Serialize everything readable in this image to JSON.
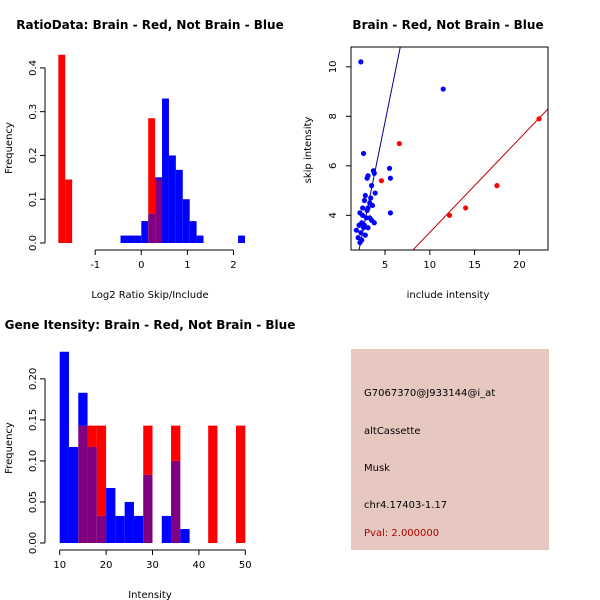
{
  "colors": {
    "red": "#ff0000",
    "blue": "#0000ff",
    "overlap": "#800080",
    "panel_bg": "#e6c8c0",
    "pval": "#b40000",
    "fit_red": "#c00000",
    "fit_blue": "#00008b"
  },
  "chart_data": [
    {
      "type": "bar",
      "id": "ratio",
      "title": "RatioData: Brain - Red, Not Brain - Blue",
      "xlabel": "Log2 Ratio Skip/Include",
      "ylabel": "Frequency",
      "xlim": [
        -1.85,
        2.25
      ],
      "ylim": [
        0,
        0.45
      ],
      "xticks": [
        -1,
        0,
        1,
        2
      ],
      "yticks": [
        0.0,
        0.1,
        0.2,
        0.3,
        0.4
      ],
      "bin_edges": [
        -1.8,
        -1.65,
        -1.5,
        -1.35,
        -1.2,
        -1.05,
        -0.9,
        -0.75,
        -0.6,
        -0.45,
        -0.3,
        -0.15,
        0,
        0.15,
        0.3,
        0.45,
        0.6,
        0.75,
        0.9,
        1.05,
        1.2,
        1.35,
        1.5,
        1.65,
        1.8,
        1.95,
        2.1,
        2.25
      ],
      "series": [
        {
          "name": "Brain",
          "color": "red",
          "values": [
            0.43,
            0.145,
            0,
            0,
            0,
            0,
            0,
            0,
            0,
            0,
            0,
            0,
            0,
            0.285,
            0.145,
            0,
            0,
            0,
            0,
            0,
            0,
            0,
            0,
            0,
            0,
            0,
            0
          ]
        },
        {
          "name": "Not Brain",
          "color": "blue",
          "values": [
            0,
            0,
            0,
            0,
            0,
            0,
            0,
            0,
            0,
            0.017,
            0.017,
            0.017,
            0.05,
            0.067,
            0.15,
            0.33,
            0.2,
            0.167,
            0.1,
            0.05,
            0.017,
            0,
            0,
            0,
            0,
            0,
            0.017
          ]
        }
      ]
    },
    {
      "type": "scatter",
      "id": "skip",
      "title": "Brain - Red, Not Brain - Blue",
      "xlabel": "include intensity",
      "ylabel": "skip intensity",
      "xlim": [
        1.2,
        23.2
      ],
      "ylim": [
        2.6,
        10.8
      ],
      "xticks": [
        5,
        10,
        15,
        20
      ],
      "yticks": [
        4,
        6,
        8,
        10
      ],
      "series": [
        {
          "name": "Not Brain",
          "color": "blue",
          "points": [
            [
              2.3,
              10.2
            ],
            [
              11.5,
              9.1
            ],
            [
              2.6,
              6.5
            ],
            [
              3.1,
              5.6
            ],
            [
              3.0,
              5.5
            ],
            [
              3.7,
              5.8
            ],
            [
              3.8,
              5.7
            ],
            [
              5.5,
              5.9
            ],
            [
              5.6,
              5.5
            ],
            [
              3.5,
              5.2
            ],
            [
              3.9,
              4.9
            ],
            [
              3.3,
              4.5
            ],
            [
              3.6,
              4.4
            ],
            [
              3.1,
              4.3
            ],
            [
              2.7,
              4.6
            ],
            [
              2.5,
              4.3
            ],
            [
              2.2,
              4.1
            ],
            [
              2.5,
              4.0
            ],
            [
              2.9,
              3.9
            ],
            [
              3.3,
              3.9
            ],
            [
              3.5,
              3.8
            ],
            [
              3.8,
              3.7
            ],
            [
              2.4,
              3.7
            ],
            [
              2.1,
              3.6
            ],
            [
              2.6,
              3.5
            ],
            [
              3.1,
              3.5
            ],
            [
              1.8,
              3.4
            ],
            [
              2.3,
              3.3
            ],
            [
              2.8,
              3.2
            ],
            [
              2.0,
              3.1
            ],
            [
              2.4,
              3.0
            ],
            [
              2.2,
              2.9
            ],
            [
              2.7,
              3.6
            ],
            [
              3.0,
              4.2
            ],
            [
              5.6,
              4.1
            ],
            [
              3.4,
              4.7
            ],
            [
              2.8,
              4.8
            ]
          ]
        },
        {
          "name": "Brain",
          "color": "red",
          "points": [
            [
              22.2,
              7.9
            ],
            [
              6.6,
              6.9
            ],
            [
              4.6,
              5.4
            ],
            [
              17.5,
              5.2
            ],
            [
              14.0,
              4.3
            ],
            [
              12.2,
              4.0
            ]
          ]
        }
      ],
      "fit_lines": [
        {
          "color": "blue",
          "from": [
            1.2,
            1.0
          ],
          "to": [
            8.5,
            14.0
          ]
        },
        {
          "color": "red",
          "from": [
            6.0,
            1.8
          ],
          "to": [
            23.2,
            8.3
          ]
        }
      ]
    },
    {
      "type": "bar",
      "id": "intensity",
      "title": "Gene Itensity: Brain - Red, Not Brain - Blue",
      "xlabel": "Intensity",
      "ylabel": "Frequency",
      "xlim": [
        9.2,
        50.8
      ],
      "ylim": [
        0,
        0.24
      ],
      "xticks": [
        10,
        20,
        30,
        40,
        50
      ],
      "yticks": [
        0.0,
        0.05,
        0.1,
        0.15,
        0.2
      ],
      "bin_edges": [
        10,
        12,
        14,
        16,
        18,
        20,
        22,
        24,
        26,
        28,
        30,
        32,
        34,
        36,
        38,
        40,
        42,
        44,
        46,
        48,
        50
      ],
      "series": [
        {
          "name": "Brain",
          "color": "red",
          "values": [
            0,
            0,
            0.143,
            0.143,
            0.143,
            0,
            0,
            0,
            0,
            0.143,
            0,
            0,
            0.143,
            0,
            0,
            0,
            0.143,
            0,
            0,
            0.143
          ]
        },
        {
          "name": "Not Brain",
          "color": "blue",
          "values": [
            0.233,
            0.117,
            0.183,
            0.117,
            0.033,
            0.067,
            0.033,
            0.05,
            0.033,
            0.083,
            0,
            0.033,
            0.1,
            0.017,
            0,
            0,
            0,
            0,
            0,
            0
          ]
        }
      ]
    }
  ],
  "info": {
    "probe_id": "G7067370@J933144@i_at",
    "event_type": "altCassette",
    "organism": "Musk",
    "location": "chr4.17403-1.17",
    "pval": "Pval: 2.000000"
  }
}
